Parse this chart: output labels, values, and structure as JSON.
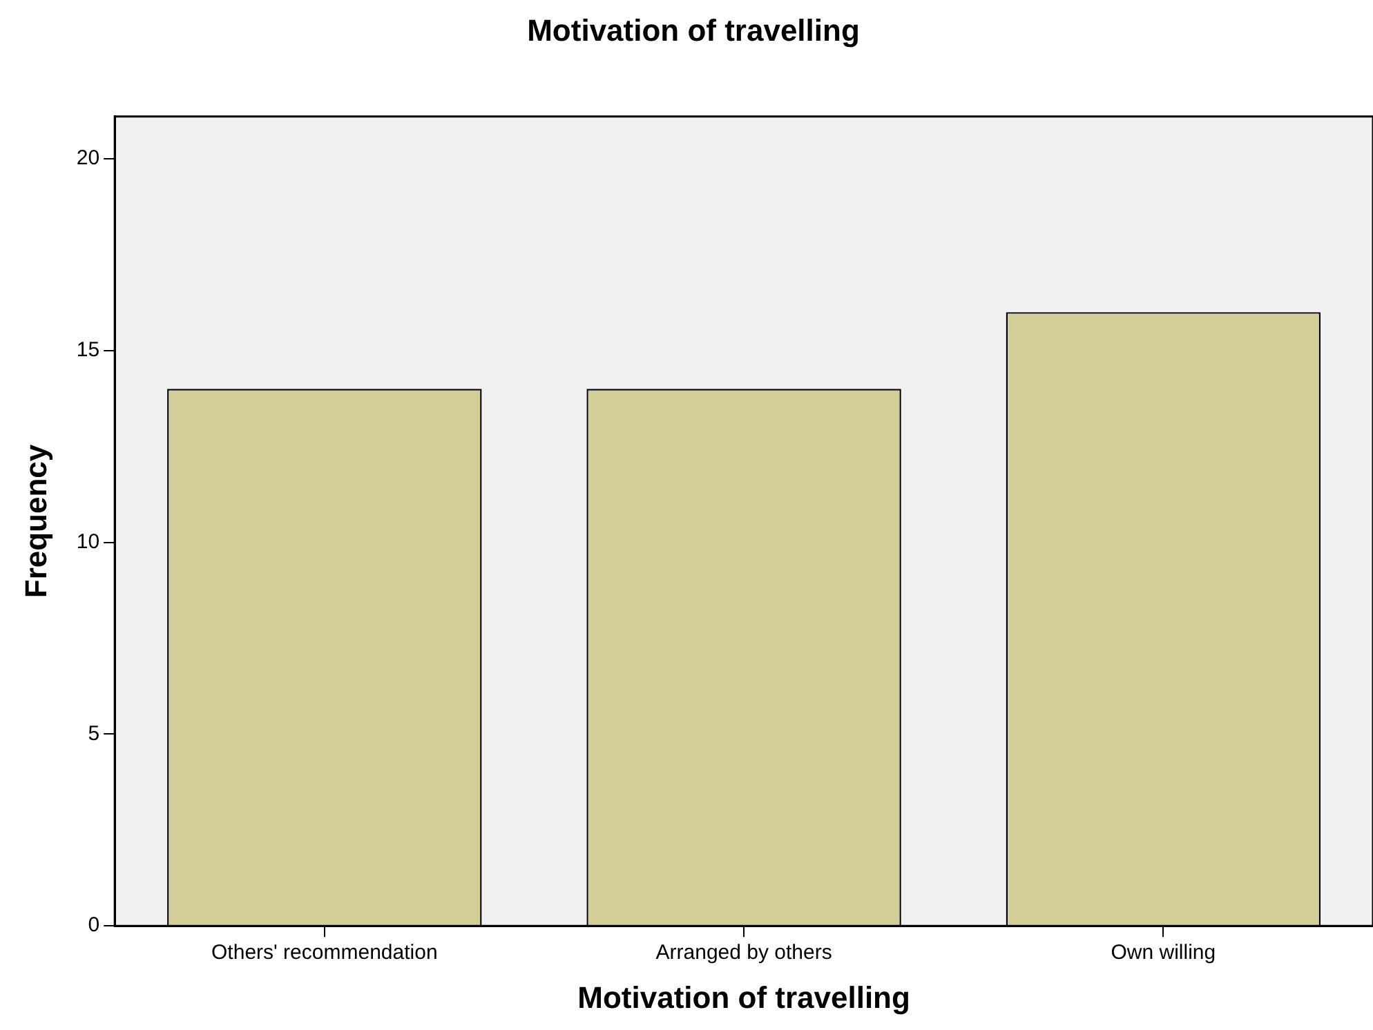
{
  "chart_data": {
    "type": "bar",
    "title": "Motivation of travelling",
    "xlabel": "Motivation of travelling",
    "ylabel": "Frequency",
    "categories": [
      "Others' recommendation",
      "Arranged by others",
      "Own willing"
    ],
    "values": [
      14,
      14,
      16
    ],
    "color": "#d3ce97",
    "ylim": [
      0,
      21.1
    ],
    "yticks": [
      0,
      5,
      10,
      15,
      20
    ],
    "grid": false,
    "legend": false
  }
}
